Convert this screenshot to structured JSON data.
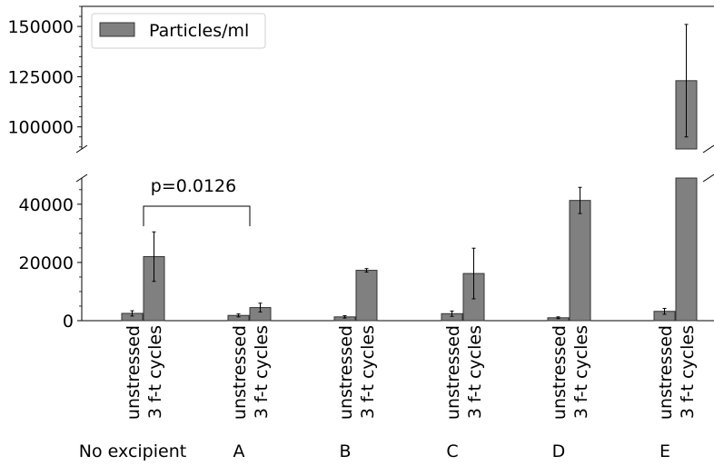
{
  "chart_data": {
    "type": "bar",
    "broken_y_axis": true,
    "bar_color": "#808080",
    "legend": {
      "label": "Particles/ml",
      "placement": "top-left"
    },
    "groups": [
      "No excipient",
      "A",
      "B",
      "C",
      "D",
      "E"
    ],
    "conditions": [
      "unstressed",
      "3 f-t cycles"
    ],
    "series": [
      {
        "values": [
          2500,
          1800,
          1300,
          2400,
          1000,
          3200
        ],
        "errors": [
          900,
          500,
          400,
          900,
          300,
          1000
        ]
      },
      {
        "values": [
          22000,
          4500,
          17300,
          16200,
          41300,
          123000
        ],
        "errors": [
          8500,
          1500,
          600,
          8700,
          4500,
          28000
        ]
      }
    ],
    "ylim_lower": [
      0,
      49000
    ],
    "ylim_upper": [
      89000,
      160000
    ],
    "yticks_lower": [
      "0",
      "20000",
      "40000"
    ],
    "yticks_upper": [
      "100000",
      "125000",
      "150000"
    ],
    "yticks_lower_values": [
      0,
      20000,
      40000
    ],
    "yticks_upper_values": [
      100000,
      125000,
      150000
    ],
    "annotation": {
      "text": "p=0.0126",
      "from_group": 0,
      "to_group": 1
    }
  }
}
